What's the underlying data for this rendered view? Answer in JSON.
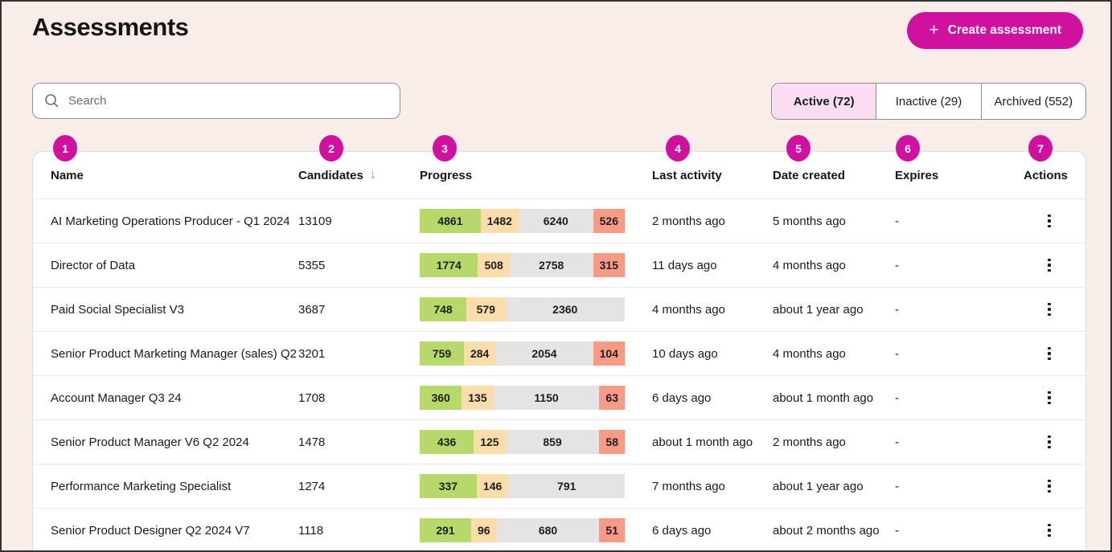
{
  "page": {
    "title": "Assessments"
  },
  "header": {
    "create_button_label": "Create assessment",
    "create_button_plus": "+"
  },
  "search": {
    "placeholder": "Search"
  },
  "tabs": [
    {
      "label": "Active (72)",
      "active": true
    },
    {
      "label": "Inactive (29)",
      "active": false
    },
    {
      "label": "Archived (552)",
      "active": false
    }
  ],
  "annotations": {
    "badges": [
      "1",
      "2",
      "3",
      "4",
      "5",
      "6",
      "7"
    ]
  },
  "colors": {
    "accent_magenta": "#d011a0",
    "active_tab_pink": "#fadcf3",
    "background_cream": "#f8ede8",
    "segment_green": "#b7d96b",
    "segment_peach": "#fbdcab",
    "segment_gray": "#e5e4e2",
    "segment_salmon": "#f89b86"
  },
  "table": {
    "columns": [
      {
        "label": "Name"
      },
      {
        "label": "Candidates",
        "sort": "↓"
      },
      {
        "label": "Progress"
      },
      {
        "label": "Last activity"
      },
      {
        "label": "Date created"
      },
      {
        "label": "Expires"
      },
      {
        "label": "Actions"
      }
    ],
    "rows": [
      {
        "name": "AI Marketing Operations Producer - Q1 2024",
        "candidates": "13109",
        "progress": [
          {
            "label": "4861",
            "value": 4861,
            "color": "green"
          },
          {
            "label": "1482",
            "value": 1482,
            "color": "peach"
          },
          {
            "label": "6240",
            "value": 6240,
            "color": "gray"
          },
          {
            "label": "526",
            "value": 526,
            "color": "salmon"
          }
        ],
        "last_activity": "2 months ago",
        "date_created": "5 months ago",
        "expires": "-"
      },
      {
        "name": "Director of Data",
        "candidates": "5355",
        "progress": [
          {
            "label": "1774",
            "value": 1774,
            "color": "green"
          },
          {
            "label": "508",
            "value": 508,
            "color": "peach"
          },
          {
            "label": "2758",
            "value": 2758,
            "color": "gray"
          },
          {
            "label": "315",
            "value": 315,
            "color": "salmon"
          }
        ],
        "last_activity": "11 days ago",
        "date_created": "4 months ago",
        "expires": "-"
      },
      {
        "name": "Paid Social Specialist V3",
        "candidates": "3687",
        "progress": [
          {
            "label": "748",
            "value": 748,
            "color": "green"
          },
          {
            "label": "579",
            "value": 579,
            "color": "peach"
          },
          {
            "label": "2360",
            "value": 2360,
            "color": "gray"
          }
        ],
        "last_activity": "4 months ago",
        "date_created": "about 1 year ago",
        "expires": "-"
      },
      {
        "name": "Senior Product Marketing Manager (sales) Q2",
        "candidates": "3201",
        "progress": [
          {
            "label": "759",
            "value": 759,
            "color": "green"
          },
          {
            "label": "284",
            "value": 284,
            "color": "peach"
          },
          {
            "label": "2054",
            "value": 2054,
            "color": "gray"
          },
          {
            "label": "104",
            "value": 104,
            "color": "salmon"
          }
        ],
        "last_activity": "10 days ago",
        "date_created": "4 months ago",
        "expires": "-"
      },
      {
        "name": "Account Manager Q3 24",
        "candidates": "1708",
        "progress": [
          {
            "label": "360",
            "value": 360,
            "color": "green"
          },
          {
            "label": "135",
            "value": 135,
            "color": "peach"
          },
          {
            "label": "1150",
            "value": 1150,
            "color": "gray"
          },
          {
            "label": "63",
            "value": 63,
            "color": "salmon"
          }
        ],
        "last_activity": "6 days ago",
        "date_created": "about 1 month ago",
        "expires": "-"
      },
      {
        "name": "Senior Product Manager V6 Q2 2024",
        "candidates": "1478",
        "progress": [
          {
            "label": "436",
            "value": 436,
            "color": "green"
          },
          {
            "label": "125",
            "value": 125,
            "color": "peach"
          },
          {
            "label": "859",
            "value": 859,
            "color": "gray"
          },
          {
            "label": "58",
            "value": 58,
            "color": "salmon"
          }
        ],
        "last_activity": "about 1 month ago",
        "date_created": "2 months ago",
        "expires": "-"
      },
      {
        "name": "Performance Marketing Specialist",
        "candidates": "1274",
        "progress": [
          {
            "label": "337",
            "value": 337,
            "color": "green"
          },
          {
            "label": "146",
            "value": 146,
            "color": "peach"
          },
          {
            "label": "791",
            "value": 791,
            "color": "gray"
          }
        ],
        "last_activity": "7 months ago",
        "date_created": "about 1 year ago",
        "expires": "-"
      },
      {
        "name": "Senior Product Designer Q2 2024 V7",
        "candidates": "1118",
        "progress": [
          {
            "label": "291",
            "value": 291,
            "color": "green"
          },
          {
            "label": "96",
            "value": 96,
            "color": "peach"
          },
          {
            "label": "680",
            "value": 680,
            "color": "gray"
          },
          {
            "label": "51",
            "value": 51,
            "color": "salmon"
          }
        ],
        "last_activity": "6 days ago",
        "date_created": "about 2 months ago",
        "expires": "-"
      }
    ]
  }
}
